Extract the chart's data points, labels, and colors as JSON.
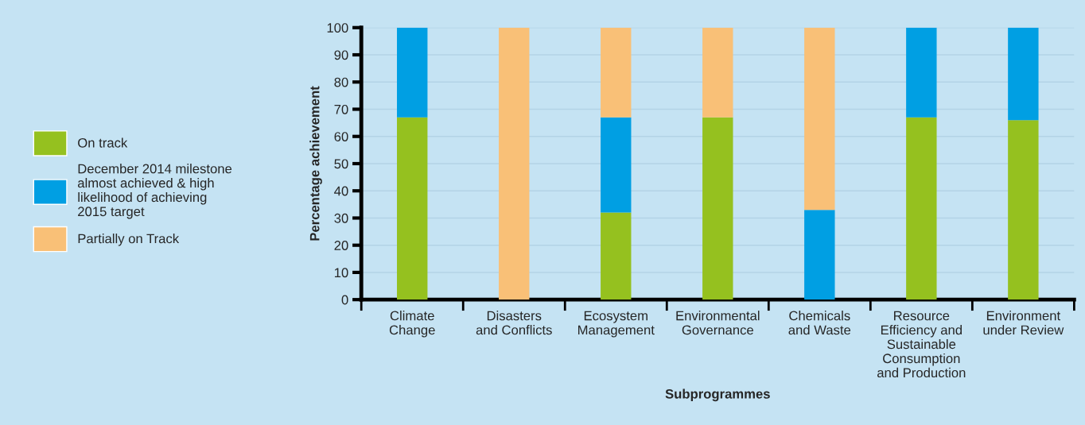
{
  "chart_data": {
    "type": "bar",
    "stacked": true,
    "categories": [
      "Climate\nChange",
      "Disasters\nand Conflicts",
      "Ecosystem\nManagement",
      "Environmental\nGovernance",
      "Chemicals\nand Waste",
      "Resource\nEfficiency and\nSustainable\nConsumption\nand Production",
      "Environment\nunder Review"
    ],
    "series": [
      {
        "name": "On track",
        "color": "#95c11f",
        "values": [
          67,
          0,
          32,
          67,
          0,
          67,
          66
        ]
      },
      {
        "name": "December 2014 milestone\nalmost achieved & high\nlikelihood of achieving\n2015 target",
        "color": "#009fe3",
        "values": [
          33,
          0,
          35,
          0,
          33,
          33,
          34
        ]
      },
      {
        "name": "Partially on Track",
        "color": "#f9c077",
        "values": [
          0,
          100,
          33,
          33,
          67,
          0,
          0
        ]
      }
    ],
    "xlabel": "Subprogrammes",
    "ylabel": "Percentage achievement",
    "ylim": [
      0,
      100
    ],
    "yticks": [
      0,
      10,
      20,
      30,
      40,
      50,
      60,
      70,
      80,
      90,
      100
    ],
    "grid": "y",
    "legend": "left"
  }
}
